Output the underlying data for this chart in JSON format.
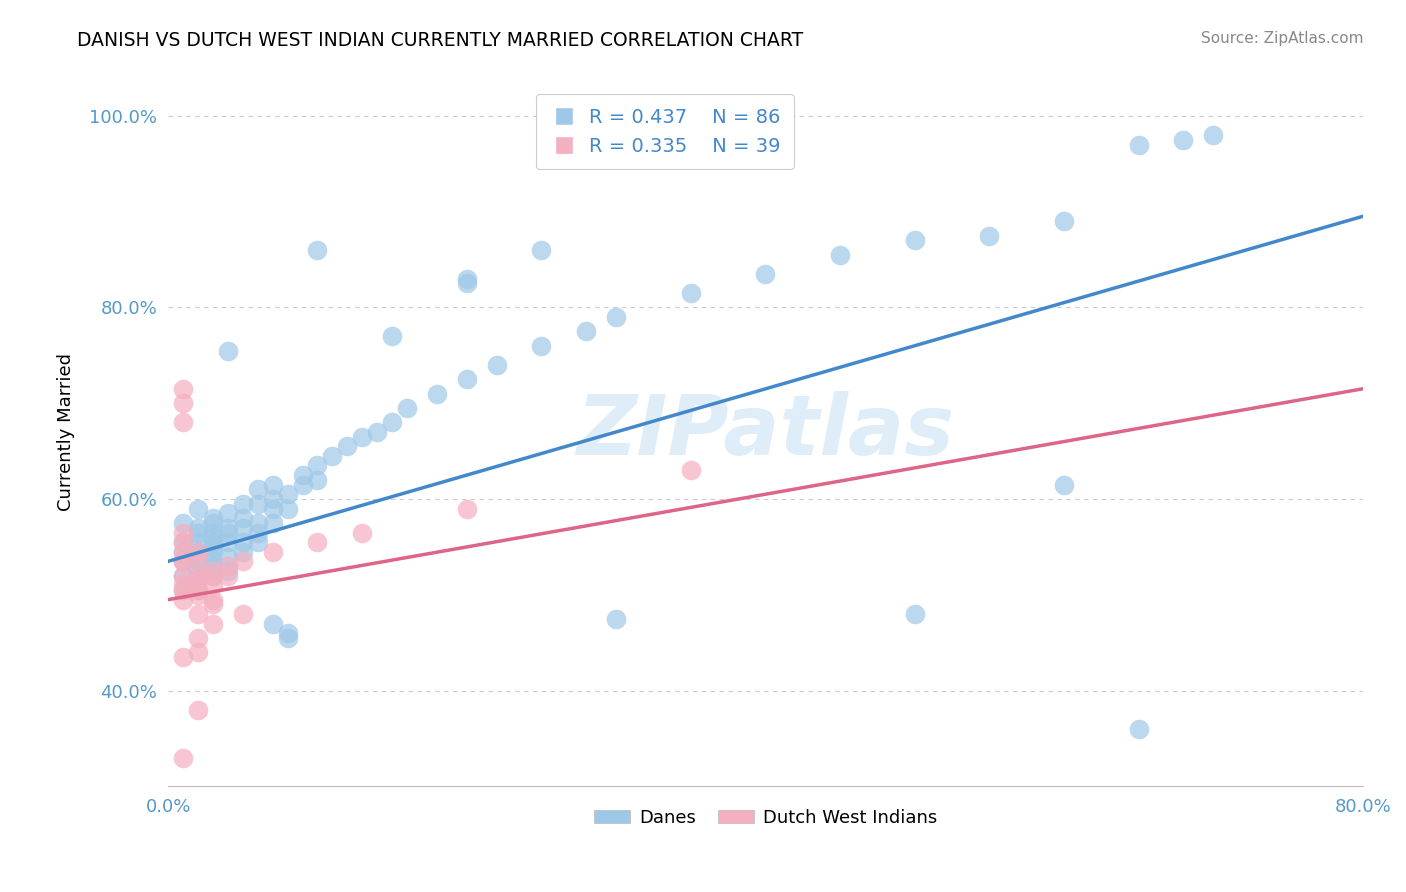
{
  "title": "DANISH VS DUTCH WEST INDIAN CURRENTLY MARRIED CORRELATION CHART",
  "source": "Source: ZipAtlas.com",
  "ylabel": "Currently Married",
  "xlim": [
    0.0,
    0.8
  ],
  "ylim_min": 0.3,
  "ylim_max": 1.04,
  "yticks": [
    0.4,
    0.6,
    0.8,
    1.0
  ],
  "xticks": [
    0.0,
    0.8
  ],
  "blue_color": "#9ec8e8",
  "pink_color": "#f4afc0",
  "blue_line_color": "#4488cc",
  "pink_line_color": "#dd6688",
  "grid_color": "#cccccc",
  "danes_label": "Danes",
  "dutch_label": "Dutch West Indians",
  "blue_line": [
    [
      0.0,
      0.535
    ],
    [
      0.8,
      0.895
    ]
  ],
  "pink_line": [
    [
      0.0,
      0.495
    ],
    [
      0.8,
      0.715
    ]
  ],
  "blue_scatter": [
    [
      0.01,
      0.535
    ],
    [
      0.01,
      0.555
    ],
    [
      0.01,
      0.52
    ],
    [
      0.01,
      0.575
    ],
    [
      0.01,
      0.505
    ],
    [
      0.01,
      0.545
    ],
    [
      0.02,
      0.535
    ],
    [
      0.02,
      0.565
    ],
    [
      0.02,
      0.515
    ],
    [
      0.02,
      0.555
    ],
    [
      0.02,
      0.59
    ],
    [
      0.02,
      0.57
    ],
    [
      0.02,
      0.545
    ],
    [
      0.02,
      0.525
    ],
    [
      0.03,
      0.555
    ],
    [
      0.03,
      0.565
    ],
    [
      0.03,
      0.545
    ],
    [
      0.03,
      0.535
    ],
    [
      0.03,
      0.56
    ],
    [
      0.03,
      0.52
    ],
    [
      0.03,
      0.575
    ],
    [
      0.03,
      0.53
    ],
    [
      0.03,
      0.58
    ],
    [
      0.03,
      0.55
    ],
    [
      0.04,
      0.565
    ],
    [
      0.04,
      0.54
    ],
    [
      0.04,
      0.525
    ],
    [
      0.04,
      0.57
    ],
    [
      0.04,
      0.555
    ],
    [
      0.04,
      0.585
    ],
    [
      0.05,
      0.58
    ],
    [
      0.05,
      0.57
    ],
    [
      0.05,
      0.555
    ],
    [
      0.05,
      0.595
    ],
    [
      0.05,
      0.545
    ],
    [
      0.06,
      0.575
    ],
    [
      0.06,
      0.595
    ],
    [
      0.06,
      0.565
    ],
    [
      0.06,
      0.61
    ],
    [
      0.06,
      0.555
    ],
    [
      0.07,
      0.6
    ],
    [
      0.07,
      0.59
    ],
    [
      0.07,
      0.575
    ],
    [
      0.07,
      0.615
    ],
    [
      0.08,
      0.605
    ],
    [
      0.08,
      0.59
    ],
    [
      0.09,
      0.625
    ],
    [
      0.09,
      0.615
    ],
    [
      0.1,
      0.635
    ],
    [
      0.1,
      0.62
    ],
    [
      0.11,
      0.645
    ],
    [
      0.12,
      0.655
    ],
    [
      0.13,
      0.665
    ],
    [
      0.14,
      0.67
    ],
    [
      0.15,
      0.68
    ],
    [
      0.16,
      0.695
    ],
    [
      0.18,
      0.71
    ],
    [
      0.2,
      0.725
    ],
    [
      0.22,
      0.74
    ],
    [
      0.25,
      0.76
    ],
    [
      0.28,
      0.775
    ],
    [
      0.3,
      0.79
    ],
    [
      0.35,
      0.815
    ],
    [
      0.4,
      0.835
    ],
    [
      0.45,
      0.855
    ],
    [
      0.5,
      0.87
    ],
    [
      0.55,
      0.875
    ],
    [
      0.6,
      0.89
    ],
    [
      0.65,
      0.97
    ],
    [
      0.68,
      0.975
    ],
    [
      0.7,
      0.98
    ],
    [
      0.15,
      0.77
    ],
    [
      0.2,
      0.83
    ],
    [
      0.1,
      0.86
    ],
    [
      0.25,
      0.86
    ],
    [
      0.3,
      0.475
    ],
    [
      0.5,
      0.48
    ],
    [
      0.6,
      0.615
    ],
    [
      0.65,
      0.36
    ],
    [
      0.08,
      0.455
    ],
    [
      0.04,
      0.755
    ],
    [
      0.2,
      0.825
    ],
    [
      0.02,
      0.505
    ],
    [
      0.07,
      0.47
    ],
    [
      0.08,
      0.46
    ]
  ],
  "pink_scatter": [
    [
      0.01,
      0.535
    ],
    [
      0.01,
      0.555
    ],
    [
      0.01,
      0.52
    ],
    [
      0.01,
      0.545
    ],
    [
      0.01,
      0.51
    ],
    [
      0.01,
      0.505
    ],
    [
      0.01,
      0.495
    ],
    [
      0.01,
      0.535
    ],
    [
      0.01,
      0.565
    ],
    [
      0.01,
      0.715
    ],
    [
      0.01,
      0.7
    ],
    [
      0.01,
      0.68
    ],
    [
      0.02,
      0.535
    ],
    [
      0.02,
      0.52
    ],
    [
      0.02,
      0.505
    ],
    [
      0.02,
      0.545
    ],
    [
      0.02,
      0.515
    ],
    [
      0.02,
      0.5
    ],
    [
      0.02,
      0.48
    ],
    [
      0.02,
      0.455
    ],
    [
      0.02,
      0.44
    ],
    [
      0.03,
      0.525
    ],
    [
      0.03,
      0.52
    ],
    [
      0.03,
      0.51
    ],
    [
      0.03,
      0.495
    ],
    [
      0.03,
      0.49
    ],
    [
      0.03,
      0.47
    ],
    [
      0.04,
      0.53
    ],
    [
      0.04,
      0.52
    ],
    [
      0.05,
      0.535
    ],
    [
      0.05,
      0.48
    ],
    [
      0.07,
      0.545
    ],
    [
      0.1,
      0.555
    ],
    [
      0.13,
      0.565
    ],
    [
      0.2,
      0.59
    ],
    [
      0.35,
      0.63
    ],
    [
      0.01,
      0.435
    ],
    [
      0.02,
      0.38
    ],
    [
      0.01,
      0.33
    ]
  ]
}
